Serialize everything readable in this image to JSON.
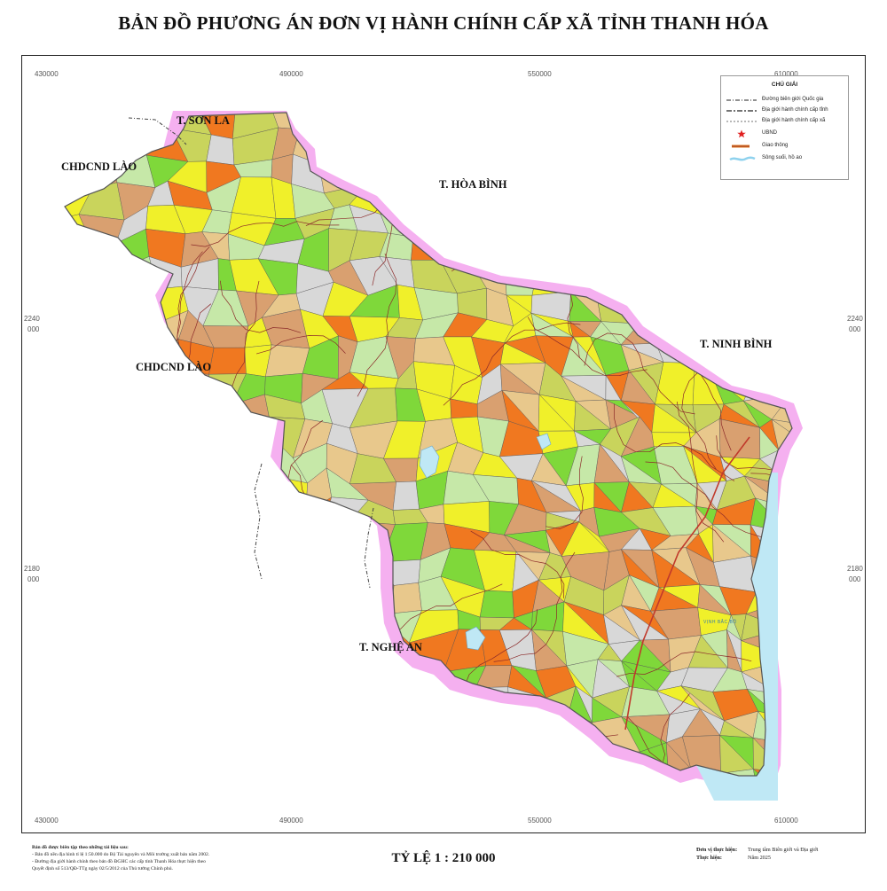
{
  "title": "BẢN ĐỒ PHƯƠNG ÁN ĐƠN VỊ HÀNH CHÍNH CẤP XÃ TỈNH THANH HÓA",
  "grid": {
    "top_labels": [
      "430000",
      "490000",
      "550000",
      "610000"
    ],
    "bottom_labels": [
      "430000",
      "490000",
      "550000",
      "610000"
    ],
    "left_labels": [
      [
        "2240",
        "000"
      ],
      [
        "2180",
        "000"
      ]
    ],
    "right_labels": [
      [
        "2240",
        "000"
      ],
      [
        "2180",
        "000"
      ]
    ]
  },
  "neighbors": {
    "son_la": "T. SƠN LA",
    "lao_north": "CHDCND LÀO",
    "lao_mid": "CHDCND LÀO",
    "hoa_binh": "T. HÒA BÌNH",
    "ninh_binh": "T. NINH BÌNH",
    "nghe_an": "T. NGHỆ AN",
    "sea": "VỊNH BẮC BỘ"
  },
  "legend": {
    "title": "CHÚ GIẢI",
    "items": [
      {
        "label": "Đường biên giới Quốc gia",
        "icon": "national-border-line"
      },
      {
        "label": "Địa giới hành chính cấp tỉnh",
        "icon": "province-boundary-line"
      },
      {
        "label": "Địa giới hành chính cấp xã",
        "icon": "commune-boundary-line"
      },
      {
        "label": "UBND",
        "icon": "red-star-icon"
      },
      {
        "label": "Giao thông",
        "icon": "road-line"
      },
      {
        "label": "Sông suối, hồ ao",
        "icon": "river-symbol"
      }
    ]
  },
  "colors": {
    "commune_palette": [
      "#f07820",
      "#c9d45c",
      "#7fd83a",
      "#f0f02a",
      "#e8c88c",
      "#d8d8d8",
      "#d9a070",
      "#c6e8a8"
    ],
    "neighbor_buffer": "#f5b0f0",
    "sea": "#bfe8f5",
    "commune_boundary": "#333333",
    "road": "#8b2a2a"
  },
  "footer": {
    "notes_heading": "Bản đồ được biên tập theo những tài liệu sau:",
    "notes": [
      "- Bản đồ nền địa hình tỉ lệ 1:50.000 do Bộ Tài nguyên và Môi trường xuất bản năm 2002.",
      "- Đường địa giới hành chính theo bản đồ ĐGHC các cấp tỉnh Thanh Hóa thực hiện theo",
      "Quyết định số 513/QĐ-TTg ngày 02/5/2012 của Thủ tướng Chính phủ."
    ],
    "scale": "TỶ LỆ 1 : 210 000",
    "unit_label": "Đơn vị thực hiện:",
    "unit_value": "Trung tâm Biên giới và Địa giới",
    "year_label": "Thực hiện:",
    "year_value": "Năm 2025"
  }
}
